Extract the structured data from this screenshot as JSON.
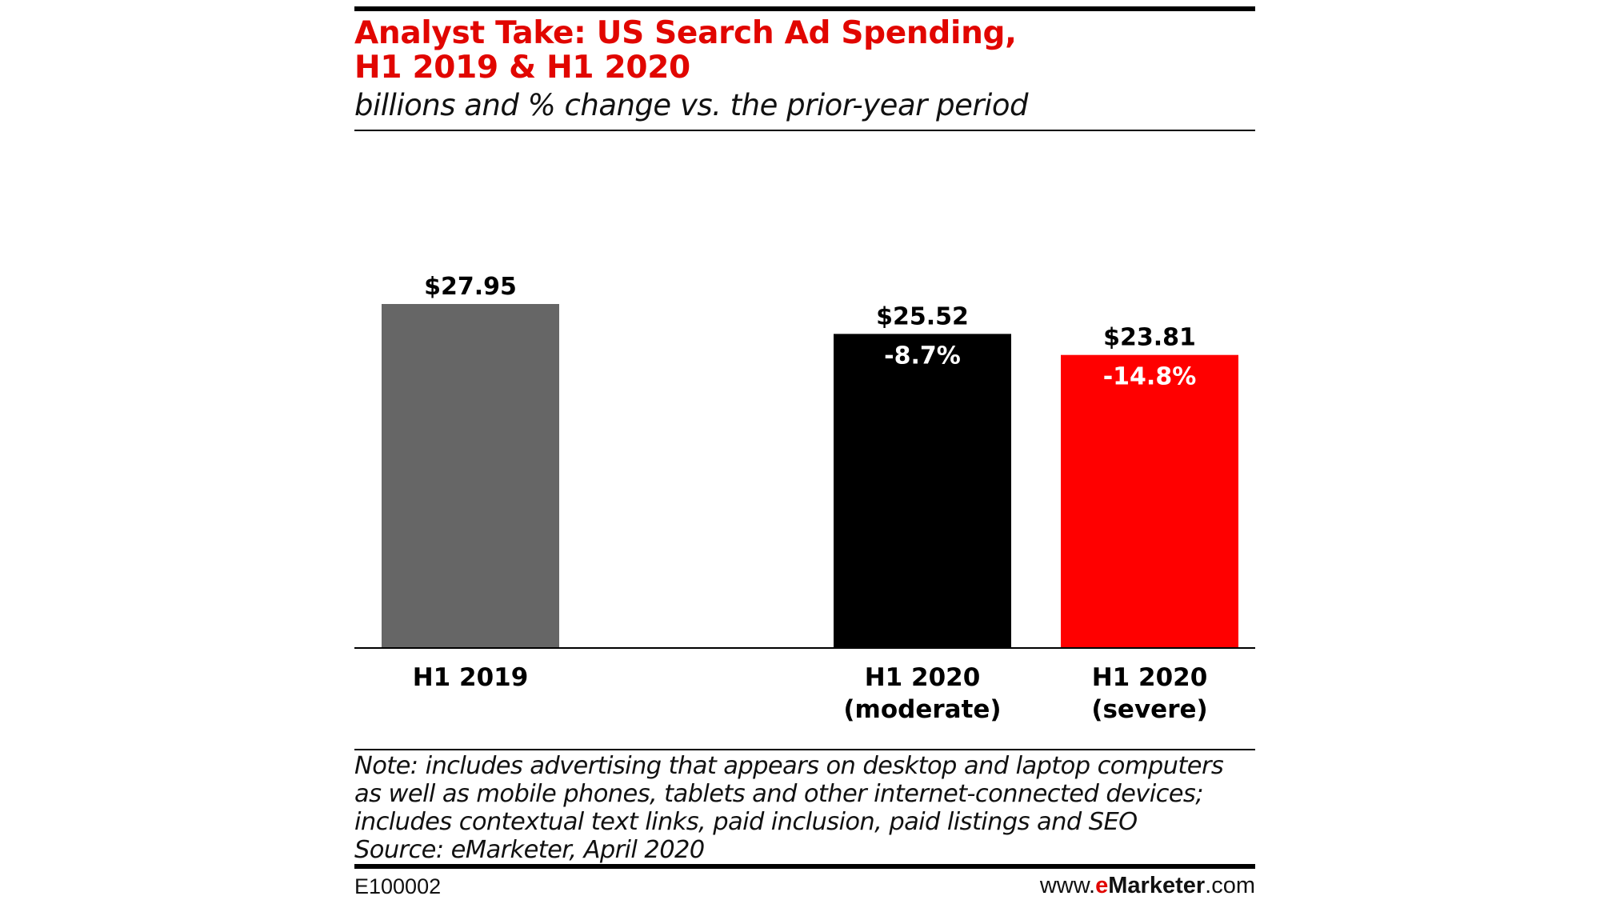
{
  "header": {
    "title_line1": "Analyst Take: US Search Ad Spending,",
    "title_line2": "H1 2019 & H1 2020",
    "subtitle": "billions and % change vs. the prior-year period"
  },
  "colors": {
    "title": "#e10600",
    "bar_h1_2019": "#666666",
    "bar_moderate": "#000000",
    "bar_severe": "#ff0000"
  },
  "chart_data": {
    "type": "bar",
    "title": "Analyst Take: US Search Ad Spending, H1 2019 & H1 2020",
    "subtitle": "billions and % change vs. the prior-year period",
    "categories": [
      [
        "H1 2019"
      ],
      [
        "H1 2020",
        "(moderate)"
      ],
      [
        "H1 2020",
        "(severe)"
      ]
    ],
    "values": [
      27.95,
      25.52,
      23.81
    ],
    "value_labels": [
      "$27.95",
      "$25.52",
      "$23.81"
    ],
    "change_labels": [
      "",
      "-8.7%",
      "-14.8%"
    ],
    "colors": [
      "#666666",
      "#000000",
      "#ff0000"
    ],
    "ylim": [
      0,
      27.95
    ],
    "grid": false,
    "legend": "none"
  },
  "notes": {
    "lines": [
      "Note: includes advertising that appears on desktop and laptop computers",
      "as well as mobile phones, tablets and other internet-connected devices;",
      "includes contextual text links, paid inclusion, paid listings and SEO",
      "Source: eMarketer, April 2020"
    ]
  },
  "footer": {
    "chart_id": "E100002",
    "brand_prefix": "www.",
    "brand_e": "e",
    "brand_marketer": "Marketer",
    "brand_suffix": ".com"
  }
}
